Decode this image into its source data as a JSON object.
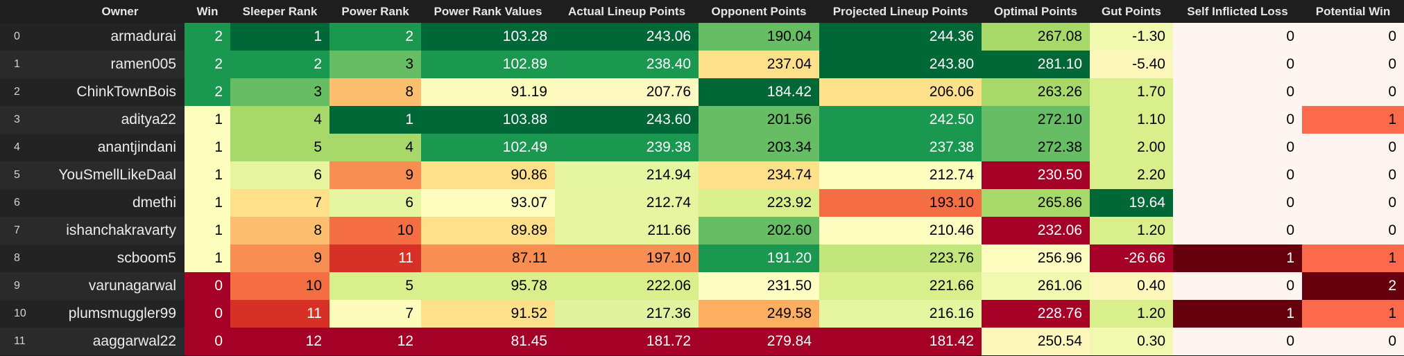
{
  "table": {
    "columns": [
      {
        "label": "",
        "key": "idx",
        "width": 80
      },
      {
        "label": "Owner",
        "key": "owner",
        "width": 186
      },
      {
        "label": "Win",
        "key": "win",
        "width": 66
      },
      {
        "label": "Sleeper Rank",
        "key": "sleeper_rank",
        "width": 143
      },
      {
        "label": "Power Rank",
        "key": "power_rank",
        "width": 132
      },
      {
        "label": "Power Rank Values",
        "key": "power_rank_values",
        "width": 193
      },
      {
        "label": "Actual Lineup Points",
        "key": "actual",
        "width": 207
      },
      {
        "label": "Opponent Points",
        "key": "opponent",
        "width": 174
      },
      {
        "label": "Projected Lineup Points",
        "key": "projected",
        "width": 234
      },
      {
        "label": "Optimal Points",
        "key": "optimal",
        "width": 156
      },
      {
        "label": "Gut Points",
        "key": "gut",
        "width": 120
      },
      {
        "label": "Self Inflicted Loss",
        "key": "self_loss",
        "width": 186
      },
      {
        "label": "Potential Win",
        "key": "potential",
        "width": 147
      }
    ],
    "rows": [
      {
        "idx": "0",
        "owner": "armadurai",
        "win": "2",
        "sleeper_rank": "1",
        "power_rank": "2",
        "power_rank_values": "103.28",
        "actual": "243.06",
        "opponent": "190.04",
        "projected": "244.36",
        "optimal": "267.08",
        "gut": "-1.30",
        "self_loss": "0",
        "potential": "0"
      },
      {
        "idx": "1",
        "owner": "ramen005",
        "win": "2",
        "sleeper_rank": "2",
        "power_rank": "3",
        "power_rank_values": "102.89",
        "actual": "238.40",
        "opponent": "237.04",
        "projected": "243.80",
        "optimal": "281.10",
        "gut": "-5.40",
        "self_loss": "0",
        "potential": "0"
      },
      {
        "idx": "2",
        "owner": "ChinkTownBois",
        "win": "2",
        "sleeper_rank": "3",
        "power_rank": "8",
        "power_rank_values": "91.19",
        "actual": "207.76",
        "opponent": "184.42",
        "projected": "206.06",
        "optimal": "263.26",
        "gut": "1.70",
        "self_loss": "0",
        "potential": "0"
      },
      {
        "idx": "3",
        "owner": "aditya22",
        "win": "1",
        "sleeper_rank": "4",
        "power_rank": "1",
        "power_rank_values": "103.88",
        "actual": "243.60",
        "opponent": "201.56",
        "projected": "242.50",
        "optimal": "272.10",
        "gut": "1.10",
        "self_loss": "0",
        "potential": "1"
      },
      {
        "idx": "4",
        "owner": "anantjindani",
        "win": "1",
        "sleeper_rank": "5",
        "power_rank": "4",
        "power_rank_values": "102.49",
        "actual": "239.38",
        "opponent": "203.34",
        "projected": "237.38",
        "optimal": "272.38",
        "gut": "2.00",
        "self_loss": "0",
        "potential": "0"
      },
      {
        "idx": "5",
        "owner": "YouSmellLikeDaal",
        "win": "1",
        "sleeper_rank": "6",
        "power_rank": "9",
        "power_rank_values": "90.86",
        "actual": "214.94",
        "opponent": "234.74",
        "projected": "212.74",
        "optimal": "230.50",
        "gut": "2.20",
        "self_loss": "0",
        "potential": "0"
      },
      {
        "idx": "6",
        "owner": "dmethi",
        "win": "1",
        "sleeper_rank": "7",
        "power_rank": "6",
        "power_rank_values": "93.07",
        "actual": "212.74",
        "opponent": "223.92",
        "projected": "193.10",
        "optimal": "265.86",
        "gut": "19.64",
        "self_loss": "0",
        "potential": "0"
      },
      {
        "idx": "7",
        "owner": "ishanchakravarty",
        "win": "1",
        "sleeper_rank": "8",
        "power_rank": "10",
        "power_rank_values": "89.89",
        "actual": "211.66",
        "opponent": "202.60",
        "projected": "210.46",
        "optimal": "232.06",
        "gut": "1.20",
        "self_loss": "0",
        "potential": "0"
      },
      {
        "idx": "8",
        "owner": "scboom5",
        "win": "1",
        "sleeper_rank": "9",
        "power_rank": "11",
        "power_rank_values": "87.11",
        "actual": "197.10",
        "opponent": "191.20",
        "projected": "223.76",
        "optimal": "256.96",
        "gut": "-26.66",
        "self_loss": "1",
        "potential": "1"
      },
      {
        "idx": "9",
        "owner": "varunagarwal",
        "win": "0",
        "sleeper_rank": "10",
        "power_rank": "5",
        "power_rank_values": "95.78",
        "actual": "222.06",
        "opponent": "231.50",
        "projected": "221.66",
        "optimal": "261.06",
        "gut": "0.40",
        "self_loss": "0",
        "potential": "2"
      },
      {
        "idx": "10",
        "owner": "plumsmuggler99",
        "win": "0",
        "sleeper_rank": "11",
        "power_rank": "7",
        "power_rank_values": "91.52",
        "actual": "217.36",
        "opponent": "249.58",
        "projected": "216.16",
        "optimal": "228.76",
        "gut": "1.20",
        "self_loss": "1",
        "potential": "1"
      },
      {
        "idx": "11",
        "owner": "aaggarwal22",
        "win": "0",
        "sleeper_rank": "12",
        "power_rank": "12",
        "power_rank_values": "81.45",
        "actual": "181.72",
        "opponent": "279.84",
        "projected": "181.42",
        "optimal": "250.54",
        "gut": "0.30",
        "self_loss": "0",
        "potential": "0"
      }
    ],
    "cell_colors": [
      [
        "#1a9850",
        "#006837",
        "#1a9850",
        "#006837",
        "#006837",
        "#66bd63",
        "#006837",
        "#a6d96a",
        "#f1f9b0",
        "#fff5f0",
        "#fff5f0"
      ],
      [
        "#1a9850",
        "#1a9850",
        "#66bd63",
        "#1a9850",
        "#1a9850",
        "#fee08b",
        "#006837",
        "#006837",
        "#fdf7bb",
        "#fff5f0",
        "#fff5f0"
      ],
      [
        "#1a9850",
        "#66bd63",
        "#fdbf6f",
        "#fefcbc",
        "#fdf9c0",
        "#006837",
        "#fee08b",
        "#a6d96a",
        "#d9ef8b",
        "#fff5f0",
        "#fff5f0"
      ],
      [
        "#feffbf",
        "#a6d96a",
        "#006837",
        "#006837",
        "#006837",
        "#66bd63",
        "#1a9850",
        "#66bd63",
        "#d9ef8b",
        "#fff5f0",
        "#fb6a4a"
      ],
      [
        "#feffbf",
        "#a6d96a",
        "#a6d96a",
        "#1a9850",
        "#1a9850",
        "#66bd63",
        "#1a9850",
        "#66bd63",
        "#d9ef8b",
        "#fff5f0",
        "#fff5f0"
      ],
      [
        "#feffbf",
        "#e8f5a0",
        "#f98e52",
        "#fee08b",
        "#e6f5a0",
        "#fee08b",
        "#feffbf",
        "#a50026",
        "#d9ef8b",
        "#fff5f0",
        "#fff5f0"
      ],
      [
        "#feffbf",
        "#fee08b",
        "#e6f5a0",
        "#fffcc0",
        "#e8f5a0",
        "#d9ef8b",
        "#f46d43",
        "#a6d96a",
        "#006837",
        "#fff5f0",
        "#fff5f0"
      ],
      [
        "#feffbf",
        "#fdbf6f",
        "#f46d43",
        "#fee08b",
        "#e8f5a0",
        "#66bd63",
        "#fdfdc0",
        "#a50026",
        "#d9ef8b",
        "#fff5f0",
        "#fff5f0"
      ],
      [
        "#feffbf",
        "#f98e52",
        "#d73027",
        "#f98e52",
        "#f98e52",
        "#1a9850",
        "#c2e67c",
        "#fdfdc0",
        "#a50026",
        "#67000d",
        "#fb6a4a"
      ],
      [
        "#a50026",
        "#f46d43",
        "#d9ef8b",
        "#d9ef8b",
        "#d9ef8b",
        "#fffec2",
        "#d9ef8b",
        "#f1f9b0",
        "#fdf7bb",
        "#fff5f0",
        "#67000d"
      ],
      [
        "#a50026",
        "#d73027",
        "#fefcbc",
        "#fee08b",
        "#e2f3a0",
        "#fdae61",
        "#e6f5a0",
        "#a50026",
        "#d9ef8b",
        "#67000d",
        "#fb6a4a"
      ],
      [
        "#a50026",
        "#a50026",
        "#a50026",
        "#a50026",
        "#a50026",
        "#a50026",
        "#a50026",
        "#fdf7bb",
        "#f1f9b0",
        "#fff5f0",
        "#fff5f0"
      ]
    ]
  }
}
